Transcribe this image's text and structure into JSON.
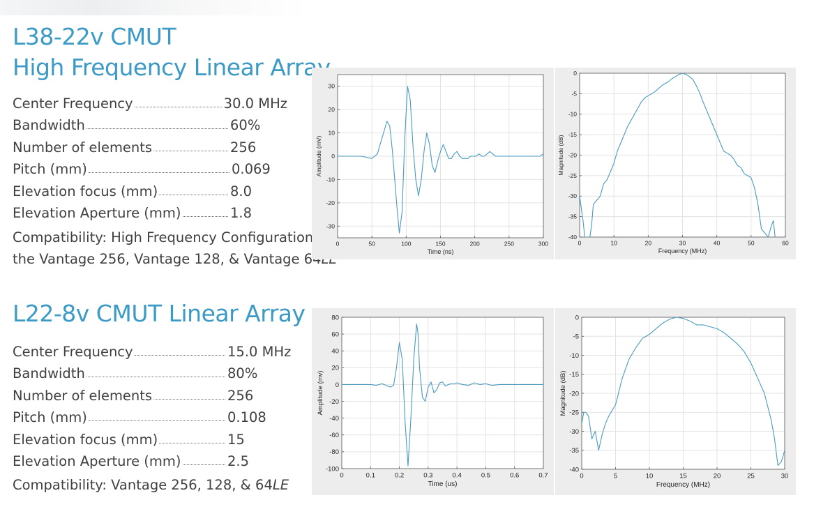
{
  "product1": {
    "title_line1": "L38-22v CMUT",
    "title_line2": "High Frequency Linear Array",
    "specs": [
      {
        "label": "Center Frequency",
        "value": "30.0 MHz"
      },
      {
        "label": "Bandwidth",
        "value": "60%"
      },
      {
        "label": "Number of elements",
        "value": "256"
      },
      {
        "label": "Pitch (mm)",
        "value": "0.069"
      },
      {
        "label": "Elevation focus (mm)",
        "value": "8.0"
      },
      {
        "label": "Elevation Aperture (mm)",
        "value": "1.8"
      }
    ],
    "compat_line1": "Compatibility: High Frequency Configurations of",
    "compat_line2_prefix": "the Vantage 256, Vantage 128, & Vantage 64",
    "compat_line2_suffix": "LE"
  },
  "product2": {
    "title": "L22-8v CMUT Linear Array",
    "specs": [
      {
        "label": "Center Frequency",
        "value": "15.0 MHz"
      },
      {
        "label": "Bandwidth",
        "value": "80%"
      },
      {
        "label": "Number of elements",
        "value": "256"
      },
      {
        "label": "Pitch (mm)",
        "value": "0.108"
      },
      {
        "label": "Elevation focus (mm)",
        "value": "15"
      },
      {
        "label": "Elevation Aperture (mm)",
        "value": "2.5"
      }
    ],
    "compat_label": "Compatibility: ",
    "compat_prefix": "Vantage 256, 128, & 64",
    "compat_suffix": "LE"
  },
  "colors": {
    "title": "#3b9ac6",
    "text": "#404040",
    "line": "#4a9ac0",
    "grid": "#e3e3e3",
    "panel": "#ededed"
  },
  "chart_data": [
    {
      "type": "line",
      "xlabel": "Time (ns)",
      "ylabel": "Amplitude (mV)",
      "xlim": [
        0,
        300
      ],
      "ylim": [
        -35,
        35
      ],
      "xticks": [
        0,
        50,
        100,
        150,
        200,
        250,
        300
      ],
      "yticks": [
        -30,
        -20,
        -10,
        0,
        10,
        20,
        30
      ],
      "grid": true,
      "series": [
        {
          "x": [
            0,
            35,
            50,
            58,
            65,
            72,
            76,
            80,
            86,
            90,
            94,
            98,
            102,
            106,
            110,
            114,
            118,
            122,
            126,
            130,
            134,
            138,
            142,
            146,
            150,
            154,
            158,
            162,
            166,
            170,
            174,
            178,
            182,
            186,
            190,
            194,
            198,
            202,
            206,
            210,
            214,
            218,
            222,
            226,
            230,
            235,
            245,
            260,
            280,
            290,
            295,
            300
          ],
          "y": [
            0,
            0,
            -1,
            1,
            8,
            15,
            13,
            2,
            -20,
            -33,
            -24,
            8,
            30,
            24,
            4,
            -10,
            -17,
            -10,
            2,
            10,
            5,
            -4,
            -7,
            -2,
            2,
            5,
            2,
            -1,
            -1,
            1,
            2,
            0,
            -1,
            -1,
            -1,
            0,
            0,
            0,
            1,
            0,
            0,
            1,
            2,
            1,
            0,
            0,
            0,
            0,
            0,
            0,
            0,
            1
          ]
        }
      ]
    },
    {
      "type": "line",
      "xlabel": "Frequency (MHz)",
      "ylabel": "Magnitude (dB)",
      "xlim": [
        0,
        60
      ],
      "ylim": [
        -40,
        0
      ],
      "xticks": [
        0,
        10,
        20,
        30,
        40,
        50,
        60
      ],
      "yticks": [
        -40,
        -35,
        -30,
        -25,
        -20,
        -15,
        -10,
        -5,
        0
      ],
      "grid": true,
      "series": [
        {
          "x": [
            0,
            0.5,
            1,
            1.5,
            2,
            2.5,
            3,
            3.5,
            4,
            5,
            6,
            7,
            8,
            9,
            10,
            11,
            12,
            13,
            14,
            15,
            16,
            17,
            18,
            19,
            20,
            22,
            24,
            26,
            27,
            28,
            29,
            30,
            31,
            32,
            33,
            34,
            35,
            36,
            37,
            38,
            39,
            40,
            41,
            42,
            43,
            44,
            45,
            46,
            47,
            48,
            49,
            50,
            51,
            52,
            53,
            55,
            56,
            56.5,
            57
          ],
          "y": [
            -30,
            -33,
            -36,
            -40,
            -40,
            -40,
            -40,
            -37,
            -32,
            -31,
            -30,
            -27,
            -26,
            -24,
            -22,
            -19,
            -17,
            -15,
            -13,
            -11.5,
            -10,
            -8.5,
            -7,
            -6,
            -5.5,
            -4.5,
            -3,
            -2,
            -1.3,
            -0.8,
            -0.3,
            0,
            -0.3,
            -0.8,
            -1.5,
            -3,
            -4.8,
            -7,
            -9,
            -11,
            -13,
            -15,
            -17,
            -19,
            -19.5,
            -20,
            -21,
            -22.5,
            -23,
            -24.5,
            -25,
            -25.5,
            -28,
            -32,
            -38,
            -40,
            -37,
            -36,
            -40
          ]
        }
      ]
    },
    {
      "type": "line",
      "xlabel": "Time (us)",
      "ylabel": "Amplitude (mv)",
      "xlim": [
        0,
        0.7
      ],
      "ylim": [
        -100,
        80
      ],
      "xticks": [
        0,
        0.1,
        0.2,
        0.3,
        0.4,
        0.5,
        0.6,
        0.7
      ],
      "yticks": [
        -100,
        -80,
        -60,
        -40,
        -20,
        0,
        20,
        40,
        60,
        80
      ],
      "grid": true,
      "series": [
        {
          "x": [
            0,
            0.1,
            0.12,
            0.14,
            0.16,
            0.17,
            0.18,
            0.19,
            0.2,
            0.21,
            0.22,
            0.23,
            0.24,
            0.25,
            0.26,
            0.265,
            0.27,
            0.28,
            0.29,
            0.3,
            0.31,
            0.32,
            0.33,
            0.34,
            0.35,
            0.36,
            0.37,
            0.38,
            0.39,
            0.4,
            0.42,
            0.44,
            0.46,
            0.48,
            0.5,
            0.52,
            0.55,
            0.6,
            0.7
          ],
          "y": [
            0,
            0,
            -1,
            1,
            -2,
            -3,
            -1,
            20,
            50,
            30,
            -45,
            -97,
            -40,
            30,
            72,
            60,
            20,
            -15,
            -20,
            -3,
            3,
            -10,
            -6,
            2,
            3,
            -2,
            0,
            1,
            1,
            2,
            0,
            -1,
            2,
            0,
            1,
            -1,
            0,
            0,
            0
          ]
        }
      ]
    },
    {
      "type": "line",
      "xlabel": "Frequency (MHz)",
      "ylabel": "Magnitude (dB)",
      "xlim": [
        0,
        30
      ],
      "ylim": [
        -40,
        0
      ],
      "xticks": [
        0,
        5,
        10,
        15,
        20,
        25,
        30
      ],
      "yticks": [
        -40,
        -35,
        -30,
        -25,
        -20,
        -15,
        -10,
        -5,
        0
      ],
      "grid": true,
      "series": [
        {
          "x": [
            0,
            0.3,
            0.6,
            1,
            1.5,
            2,
            2.5,
            3,
            3.5,
            4,
            5,
            6,
            7,
            8,
            9,
            10,
            11,
            12,
            13,
            14,
            15,
            16,
            17,
            18,
            19,
            20,
            21,
            22,
            23,
            24,
            25,
            26,
            27,
            28,
            28.5,
            29,
            29.5,
            30
          ],
          "y": [
            -28,
            -25,
            -25,
            -26,
            -32,
            -30,
            -35,
            -31,
            -28,
            -26,
            -23,
            -16,
            -11,
            -8,
            -5.5,
            -4.5,
            -3,
            -1.5,
            -0.5,
            0,
            -0.3,
            -1,
            -2,
            -2,
            -2.5,
            -3,
            -4,
            -5.5,
            -7,
            -9,
            -12,
            -16,
            -20,
            -27,
            -32,
            -39,
            -38,
            -35
          ]
        }
      ]
    }
  ]
}
